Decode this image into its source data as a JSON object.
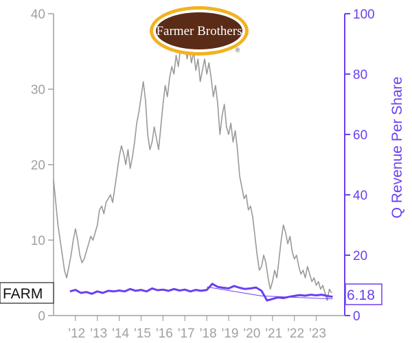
{
  "chart_data": {
    "type": "line",
    "ticker": "FARM",
    "logo_text": "Farmer Brothers",
    "logo_mark": "®",
    "right_axis_label": "Q Revenue Per Share",
    "last_value_label": "6.18",
    "left_axis": {
      "range": [
        0,
        40
      ],
      "ticks": [
        "0",
        "10",
        "20",
        "30",
        "40"
      ]
    },
    "right_axis": {
      "range": [
        0,
        100
      ],
      "ticks": [
        "0",
        "20",
        "40",
        "60",
        "80",
        "100"
      ]
    },
    "x_range": [
      2011.0,
      2024.3
    ],
    "x_ticks": [
      {
        "label": "'12",
        "x": 2012.0
      },
      {
        "label": "'13",
        "x": 2013.0
      },
      {
        "label": "'14",
        "x": 2014.0
      },
      {
        "label": "'15",
        "x": 2015.0
      },
      {
        "label": "'16",
        "x": 2016.0
      },
      {
        "label": "'17",
        "x": 2017.0
      },
      {
        "label": "'18",
        "x": 2018.0
      },
      {
        "label": "'19",
        "x": 2019.0
      },
      {
        "label": "'20",
        "x": 2020.0
      },
      {
        "label": "'21",
        "x": 2021.0
      },
      {
        "label": "'22",
        "x": 2022.0
      },
      {
        "label": "'23",
        "x": 2023.0
      }
    ],
    "series": [
      {
        "axis": "left",
        "color": "#999999",
        "points": [
          [
            2011.0,
            18.0
          ],
          [
            2011.1,
            15.0
          ],
          [
            2011.2,
            12.0
          ],
          [
            2011.3,
            10.0
          ],
          [
            2011.4,
            8.0
          ],
          [
            2011.5,
            6.0
          ],
          [
            2011.6,
            5.0
          ],
          [
            2011.7,
            6.5
          ],
          [
            2011.8,
            8.0
          ],
          [
            2011.9,
            10.0
          ],
          [
            2012.0,
            11.5
          ],
          [
            2012.1,
            10.0
          ],
          [
            2012.2,
            8.0
          ],
          [
            2012.3,
            7.0
          ],
          [
            2012.4,
            7.5
          ],
          [
            2012.5,
            8.5
          ],
          [
            2012.6,
            9.5
          ],
          [
            2012.7,
            10.5
          ],
          [
            2012.8,
            10.0
          ],
          [
            2012.9,
            11.0
          ],
          [
            2013.0,
            12.0
          ],
          [
            2013.1,
            14.0
          ],
          [
            2013.2,
            14.5
          ],
          [
            2013.3,
            13.5
          ],
          [
            2013.4,
            15.0
          ],
          [
            2013.5,
            15.5
          ],
          [
            2013.6,
            16.0
          ],
          [
            2013.7,
            15.0
          ],
          [
            2013.8,
            17.0
          ],
          [
            2013.9,
            19.0
          ],
          [
            2014.0,
            21.0
          ],
          [
            2014.1,
            22.5
          ],
          [
            2014.2,
            21.5
          ],
          [
            2014.3,
            20.0
          ],
          [
            2014.4,
            22.0
          ],
          [
            2014.5,
            19.5
          ],
          [
            2014.6,
            21.0
          ],
          [
            2014.7,
            23.0
          ],
          [
            2014.8,
            25.5
          ],
          [
            2014.9,
            27.0
          ],
          [
            2015.0,
            29.0
          ],
          [
            2015.1,
            31.0
          ],
          [
            2015.2,
            28.5
          ],
          [
            2015.3,
            24.0
          ],
          [
            2015.4,
            22.0
          ],
          [
            2015.5,
            23.0
          ],
          [
            2015.6,
            25.0
          ],
          [
            2015.7,
            23.5
          ],
          [
            2015.8,
            22.0
          ],
          [
            2015.9,
            25.0
          ],
          [
            2016.0,
            28.0
          ],
          [
            2016.1,
            30.5
          ],
          [
            2016.2,
            29.0
          ],
          [
            2016.3,
            31.5
          ],
          [
            2016.4,
            33.0
          ],
          [
            2016.5,
            32.0
          ],
          [
            2016.6,
            34.5
          ],
          [
            2016.7,
            33.0
          ],
          [
            2016.8,
            35.5
          ],
          [
            2016.9,
            37.0
          ],
          [
            2017.0,
            36.0
          ],
          [
            2017.1,
            34.0
          ],
          [
            2017.2,
            35.5
          ],
          [
            2017.3,
            33.5
          ],
          [
            2017.4,
            35.0
          ],
          [
            2017.5,
            32.5
          ],
          [
            2017.6,
            34.0
          ],
          [
            2017.7,
            31.0
          ],
          [
            2017.8,
            32.5
          ],
          [
            2017.9,
            34.0
          ],
          [
            2018.0,
            32.0
          ],
          [
            2018.1,
            33.5
          ],
          [
            2018.2,
            31.5
          ],
          [
            2018.3,
            29.0
          ],
          [
            2018.4,
            30.5
          ],
          [
            2018.5,
            28.0
          ],
          [
            2018.6,
            24.0
          ],
          [
            2018.7,
            26.5
          ],
          [
            2018.8,
            28.0
          ],
          [
            2018.9,
            25.0
          ],
          [
            2019.0,
            24.0
          ],
          [
            2019.1,
            25.5
          ],
          [
            2019.2,
            23.0
          ],
          [
            2019.3,
            24.5
          ],
          [
            2019.4,
            22.0
          ],
          [
            2019.5,
            18.5
          ],
          [
            2019.6,
            17.0
          ],
          [
            2019.7,
            15.5
          ],
          [
            2019.8,
            16.0
          ],
          [
            2019.9,
            14.0
          ],
          [
            2020.0,
            14.5
          ],
          [
            2020.1,
            13.0
          ],
          [
            2020.2,
            10.5
          ],
          [
            2020.3,
            8.0
          ],
          [
            2020.4,
            6.0
          ],
          [
            2020.5,
            6.5
          ],
          [
            2020.6,
            8.0
          ],
          [
            2020.7,
            7.0
          ],
          [
            2020.8,
            5.0
          ],
          [
            2020.9,
            3.5
          ],
          [
            2021.0,
            4.5
          ],
          [
            2021.1,
            6.0
          ],
          [
            2021.2,
            5.0
          ],
          [
            2021.3,
            7.5
          ],
          [
            2021.4,
            10.0
          ],
          [
            2021.5,
            12.0
          ],
          [
            2021.6,
            11.0
          ],
          [
            2021.7,
            9.5
          ],
          [
            2021.8,
            10.5
          ],
          [
            2021.9,
            8.5
          ],
          [
            2022.0,
            7.5
          ],
          [
            2022.1,
            8.0
          ],
          [
            2022.2,
            6.5
          ],
          [
            2022.3,
            5.5
          ],
          [
            2022.4,
            6.0
          ],
          [
            2022.5,
            5.0
          ],
          [
            2022.6,
            6.5
          ],
          [
            2022.7,
            5.5
          ],
          [
            2022.8,
            4.5
          ],
          [
            2022.9,
            5.0
          ],
          [
            2023.0,
            4.0
          ],
          [
            2023.1,
            4.5
          ],
          [
            2023.2,
            3.5
          ],
          [
            2023.3,
            4.0
          ],
          [
            2023.4,
            3.0
          ],
          [
            2023.5,
            2.0
          ],
          [
            2023.6,
            3.5
          ],
          [
            2023.7,
            3.0
          ]
        ]
      },
      {
        "axis": "right",
        "color": "#6a3ff0",
        "points": [
          [
            2011.75,
            8.0
          ],
          [
            2012.0,
            8.5
          ],
          [
            2012.25,
            7.5
          ],
          [
            2012.5,
            7.8
          ],
          [
            2012.75,
            7.2
          ],
          [
            2013.0,
            8.0
          ],
          [
            2013.25,
            7.5
          ],
          [
            2013.5,
            8.2
          ],
          [
            2013.75,
            8.0
          ],
          [
            2014.0,
            8.3
          ],
          [
            2014.25,
            8.0
          ],
          [
            2014.5,
            8.8
          ],
          [
            2014.75,
            8.2
          ],
          [
            2015.0,
            8.5
          ],
          [
            2015.25,
            8.0
          ],
          [
            2015.5,
            9.0
          ],
          [
            2015.75,
            8.4
          ],
          [
            2016.0,
            8.6
          ],
          [
            2016.25,
            8.2
          ],
          [
            2016.5,
            8.8
          ],
          [
            2016.75,
            8.3
          ],
          [
            2017.0,
            8.6
          ],
          [
            2017.25,
            8.0
          ],
          [
            2017.5,
            8.5
          ],
          [
            2017.75,
            8.2
          ],
          [
            2018.0,
            8.5
          ],
          [
            2018.25,
            10.5
          ],
          [
            2018.5,
            9.5
          ],
          [
            2018.75,
            9.2
          ],
          [
            2019.0,
            9.0
          ],
          [
            2019.25,
            9.8
          ],
          [
            2019.5,
            9.2
          ],
          [
            2019.75,
            8.8
          ],
          [
            2020.0,
            9.0
          ],
          [
            2020.25,
            9.3
          ],
          [
            2020.5,
            8.2
          ],
          [
            2020.75,
            5.0
          ],
          [
            2021.0,
            5.5
          ],
          [
            2021.25,
            6.0
          ],
          [
            2021.5,
            5.8
          ],
          [
            2021.75,
            6.2
          ],
          [
            2022.0,
            6.5
          ],
          [
            2022.25,
            6.8
          ],
          [
            2022.5,
            6.6
          ],
          [
            2022.75,
            6.9
          ],
          [
            2023.0,
            6.7
          ],
          [
            2023.25,
            6.9
          ],
          [
            2023.5,
            6.5
          ],
          [
            2023.75,
            6.18
          ]
        ]
      },
      {
        "axis": "right",
        "color": "#6a3ff0",
        "style": "thin",
        "points": [
          [
            2018.0,
            9.5
          ],
          [
            2020.5,
            6.5
          ],
          [
            2023.75,
            5.5
          ]
        ]
      }
    ]
  }
}
